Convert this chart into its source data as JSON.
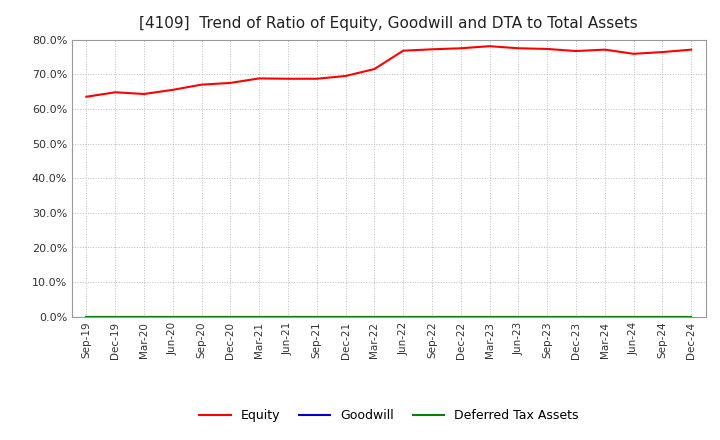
{
  "title": "[4109]  Trend of Ratio of Equity, Goodwill and DTA to Total Assets",
  "title_fontsize": 11,
  "xlabels": [
    "Sep-19",
    "Dec-19",
    "Mar-20",
    "Jun-20",
    "Sep-20",
    "Dec-20",
    "Mar-21",
    "Jun-21",
    "Sep-21",
    "Dec-21",
    "Mar-22",
    "Jun-22",
    "Sep-22",
    "Dec-22",
    "Mar-23",
    "Jun-23",
    "Sep-23",
    "Dec-23",
    "Mar-24",
    "Jun-24",
    "Sep-24",
    "Dec-24"
  ],
  "equity": [
    63.5,
    64.8,
    64.3,
    65.5,
    67.0,
    67.5,
    68.8,
    68.7,
    68.7,
    69.5,
    71.5,
    76.8,
    77.2,
    77.5,
    78.1,
    77.5,
    77.3,
    76.7,
    77.1,
    75.9,
    76.4,
    77.1
  ],
  "goodwill": [
    0.0,
    0.0,
    0.0,
    0.0,
    0.0,
    0.0,
    0.0,
    0.0,
    0.0,
    0.0,
    0.0,
    0.0,
    0.0,
    0.0,
    0.0,
    0.0,
    0.0,
    0.0,
    0.0,
    0.0,
    0.0,
    0.0
  ],
  "deferred_tax": [
    0.0,
    0.0,
    0.0,
    0.0,
    0.0,
    0.0,
    0.0,
    0.0,
    0.0,
    0.0,
    0.0,
    0.0,
    0.0,
    0.0,
    0.0,
    0.0,
    0.0,
    0.0,
    0.0,
    0.0,
    0.0,
    0.0
  ],
  "equity_color": "#ff0000",
  "goodwill_color": "#0000cc",
  "deferred_tax_color": "#008000",
  "ylim": [
    0,
    80
  ],
  "yticks": [
    0,
    10,
    20,
    30,
    40,
    50,
    60,
    70,
    80
  ],
  "background_color": "#ffffff",
  "plot_bg_color": "#ffffff",
  "grid_color": "#bbbbbb",
  "legend_labels": [
    "Equity",
    "Goodwill",
    "Deferred Tax Assets"
  ]
}
